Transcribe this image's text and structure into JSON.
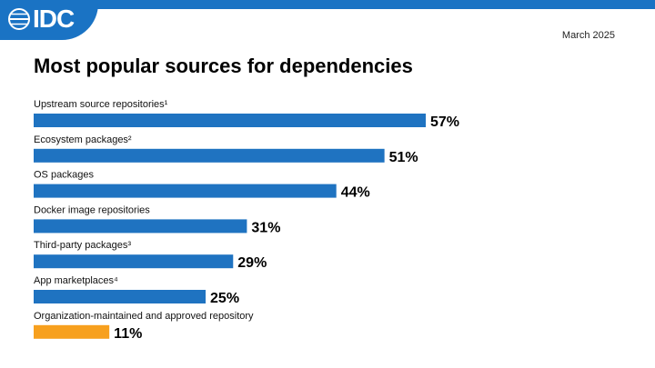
{
  "header": {
    "logo_text": "IDC",
    "date": "March 2025"
  },
  "colors": {
    "brand": "#1a73c4",
    "bar_primary": "#1f73c1",
    "bar_highlight": "#f7a01e"
  },
  "chart_data": {
    "type": "bar",
    "orientation": "horizontal",
    "title": "Most popular sources for dependencies",
    "unit": "%",
    "xlim": [
      0,
      100
    ],
    "grid": false,
    "categories": [
      "Upstream source repositories¹",
      "Ecosystem packages²",
      "OS packages",
      "Docker image repositories",
      "Third-party packages³",
      "App marketplaces⁴",
      "Organization-maintained and approved repository"
    ],
    "values": [
      57,
      51,
      44,
      31,
      29,
      25,
      11
    ],
    "value_labels": [
      "57%",
      "51%",
      "44%",
      "31%",
      "29%",
      "25%",
      "11%"
    ],
    "highlight_index": 6
  }
}
